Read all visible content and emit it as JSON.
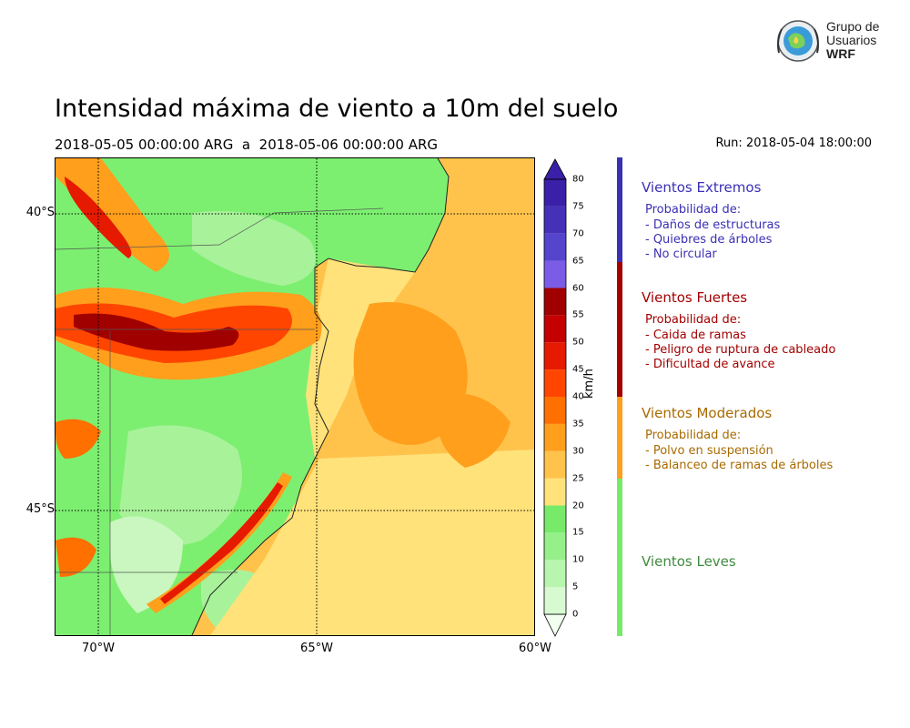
{
  "title": "Intensidad máxima de viento a 10m del suelo",
  "subtitle": "2018-05-05 00:00:00 ARG  a  2018-05-06 00:00:00 ARG",
  "run": "Run: 2018-05-04 18:00:00",
  "logo": {
    "line1": "Grupo de",
    "line2": "Usuarios",
    "line3": "WRF"
  },
  "map": {
    "lat_ticks": [
      "40°S",
      "45°S"
    ],
    "lon_ticks": [
      "70°W",
      "65°W",
      "60°W"
    ],
    "colors": {
      "ocean": "#ffc34c",
      "land_calm": "#7cef70",
      "land_mid": "#a8f29a"
    }
  },
  "colorbar": {
    "units": "km/h",
    "ticks": [
      "0",
      "5",
      "10",
      "15",
      "20",
      "25",
      "30",
      "35",
      "40",
      "45",
      "50",
      "55",
      "60",
      "65",
      "70",
      "75",
      "80"
    ],
    "colors": [
      "#f2fff0",
      "#d7fad1",
      "#b8f5ae",
      "#96f08a",
      "#77eb69",
      "#ffe27a",
      "#ffc34c",
      "#ff9f1c",
      "#ff7000",
      "#ff4500",
      "#e61a00",
      "#c40000",
      "#a00000",
      "#7a5ce6",
      "#5544cc",
      "#4530b8",
      "#3a20a8"
    ]
  },
  "categories": [
    {
      "title": "Vientos Extremos",
      "color": "#3b2fb3",
      "lines": [
        "Probabilidad de:",
        "- Daños de estructuras",
        "- Quiebres de árboles",
        "- No circular"
      ]
    },
    {
      "title": "Vientos Fuertes",
      "color": "#a30000",
      "lines": [
        "Probabilidad de:",
        "- Caida de ramas",
        "- Peligro de ruptura de cableado",
        "- Dificultad de avance"
      ]
    },
    {
      "title": "Vientos Moderados",
      "color": "#a86a00",
      "lines": [
        "Probabilidad de:",
        "- Polvo en suspensión",
        "- Balanceo de ramas de árboles"
      ]
    },
    {
      "title": "Vientos Leves",
      "color": "#3f8a3f",
      "lines": []
    }
  ],
  "band_colors": [
    "#3b2fb3",
    "#a30000",
    "#ff9f1c",
    "#77eb69"
  ]
}
